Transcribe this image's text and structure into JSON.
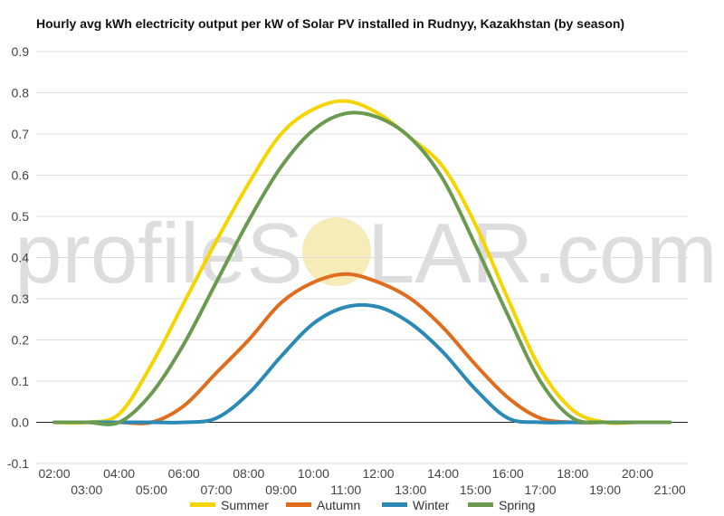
{
  "chart_data": {
    "type": "line",
    "title": "Hourly avg kWh electricity output per kW of Solar PV installed in Rudnyy, Kazakhstan (by season)",
    "xlabel": "",
    "ylabel": "",
    "ylim": [
      -0.1,
      0.9
    ],
    "yticks": [
      "-0.1",
      "0.0",
      "0.1",
      "0.2",
      "0.3",
      "0.4",
      "0.5",
      "0.6",
      "0.7",
      "0.8",
      "0.9"
    ],
    "x": [
      "02:00",
      "03:00",
      "04:00",
      "05:00",
      "06:00",
      "07:00",
      "08:00",
      "09:00",
      "10:00",
      "11:00",
      "12:00",
      "13:00",
      "14:00",
      "15:00",
      "16:00",
      "17:00",
      "18:00",
      "19:00",
      "20:00",
      "21:00"
    ],
    "grid": true,
    "legend": "bottom",
    "series": [
      {
        "name": "Summer",
        "color": "#f5d400",
        "values": [
          0.0,
          0.0,
          0.02,
          0.14,
          0.29,
          0.44,
          0.58,
          0.7,
          0.76,
          0.78,
          0.75,
          0.69,
          0.62,
          0.48,
          0.3,
          0.13,
          0.03,
          0.0,
          0.0,
          0.0
        ]
      },
      {
        "name": "Autumn",
        "color": "#e06c1d",
        "values": [
          0.0,
          0.0,
          0.0,
          0.0,
          0.04,
          0.12,
          0.2,
          0.29,
          0.34,
          0.36,
          0.34,
          0.3,
          0.23,
          0.14,
          0.06,
          0.01,
          0.0,
          0.0,
          0.0,
          0.0
        ]
      },
      {
        "name": "Winter",
        "color": "#2a8ab5",
        "values": [
          0.0,
          0.0,
          0.0,
          0.0,
          0.0,
          0.01,
          0.07,
          0.16,
          0.24,
          0.28,
          0.28,
          0.24,
          0.17,
          0.08,
          0.01,
          0.0,
          0.0,
          0.0,
          0.0,
          0.0
        ]
      },
      {
        "name": "Spring",
        "color": "#6a9a4f",
        "values": [
          0.0,
          0.0,
          0.0,
          0.07,
          0.19,
          0.34,
          0.49,
          0.62,
          0.71,
          0.75,
          0.74,
          0.69,
          0.59,
          0.43,
          0.26,
          0.1,
          0.01,
          0.0,
          0.0,
          0.0
        ]
      }
    ]
  },
  "watermark": {
    "text_left": "profileS",
    "text_right": "LAR.com",
    "sun_color": "#f6ecb8"
  }
}
